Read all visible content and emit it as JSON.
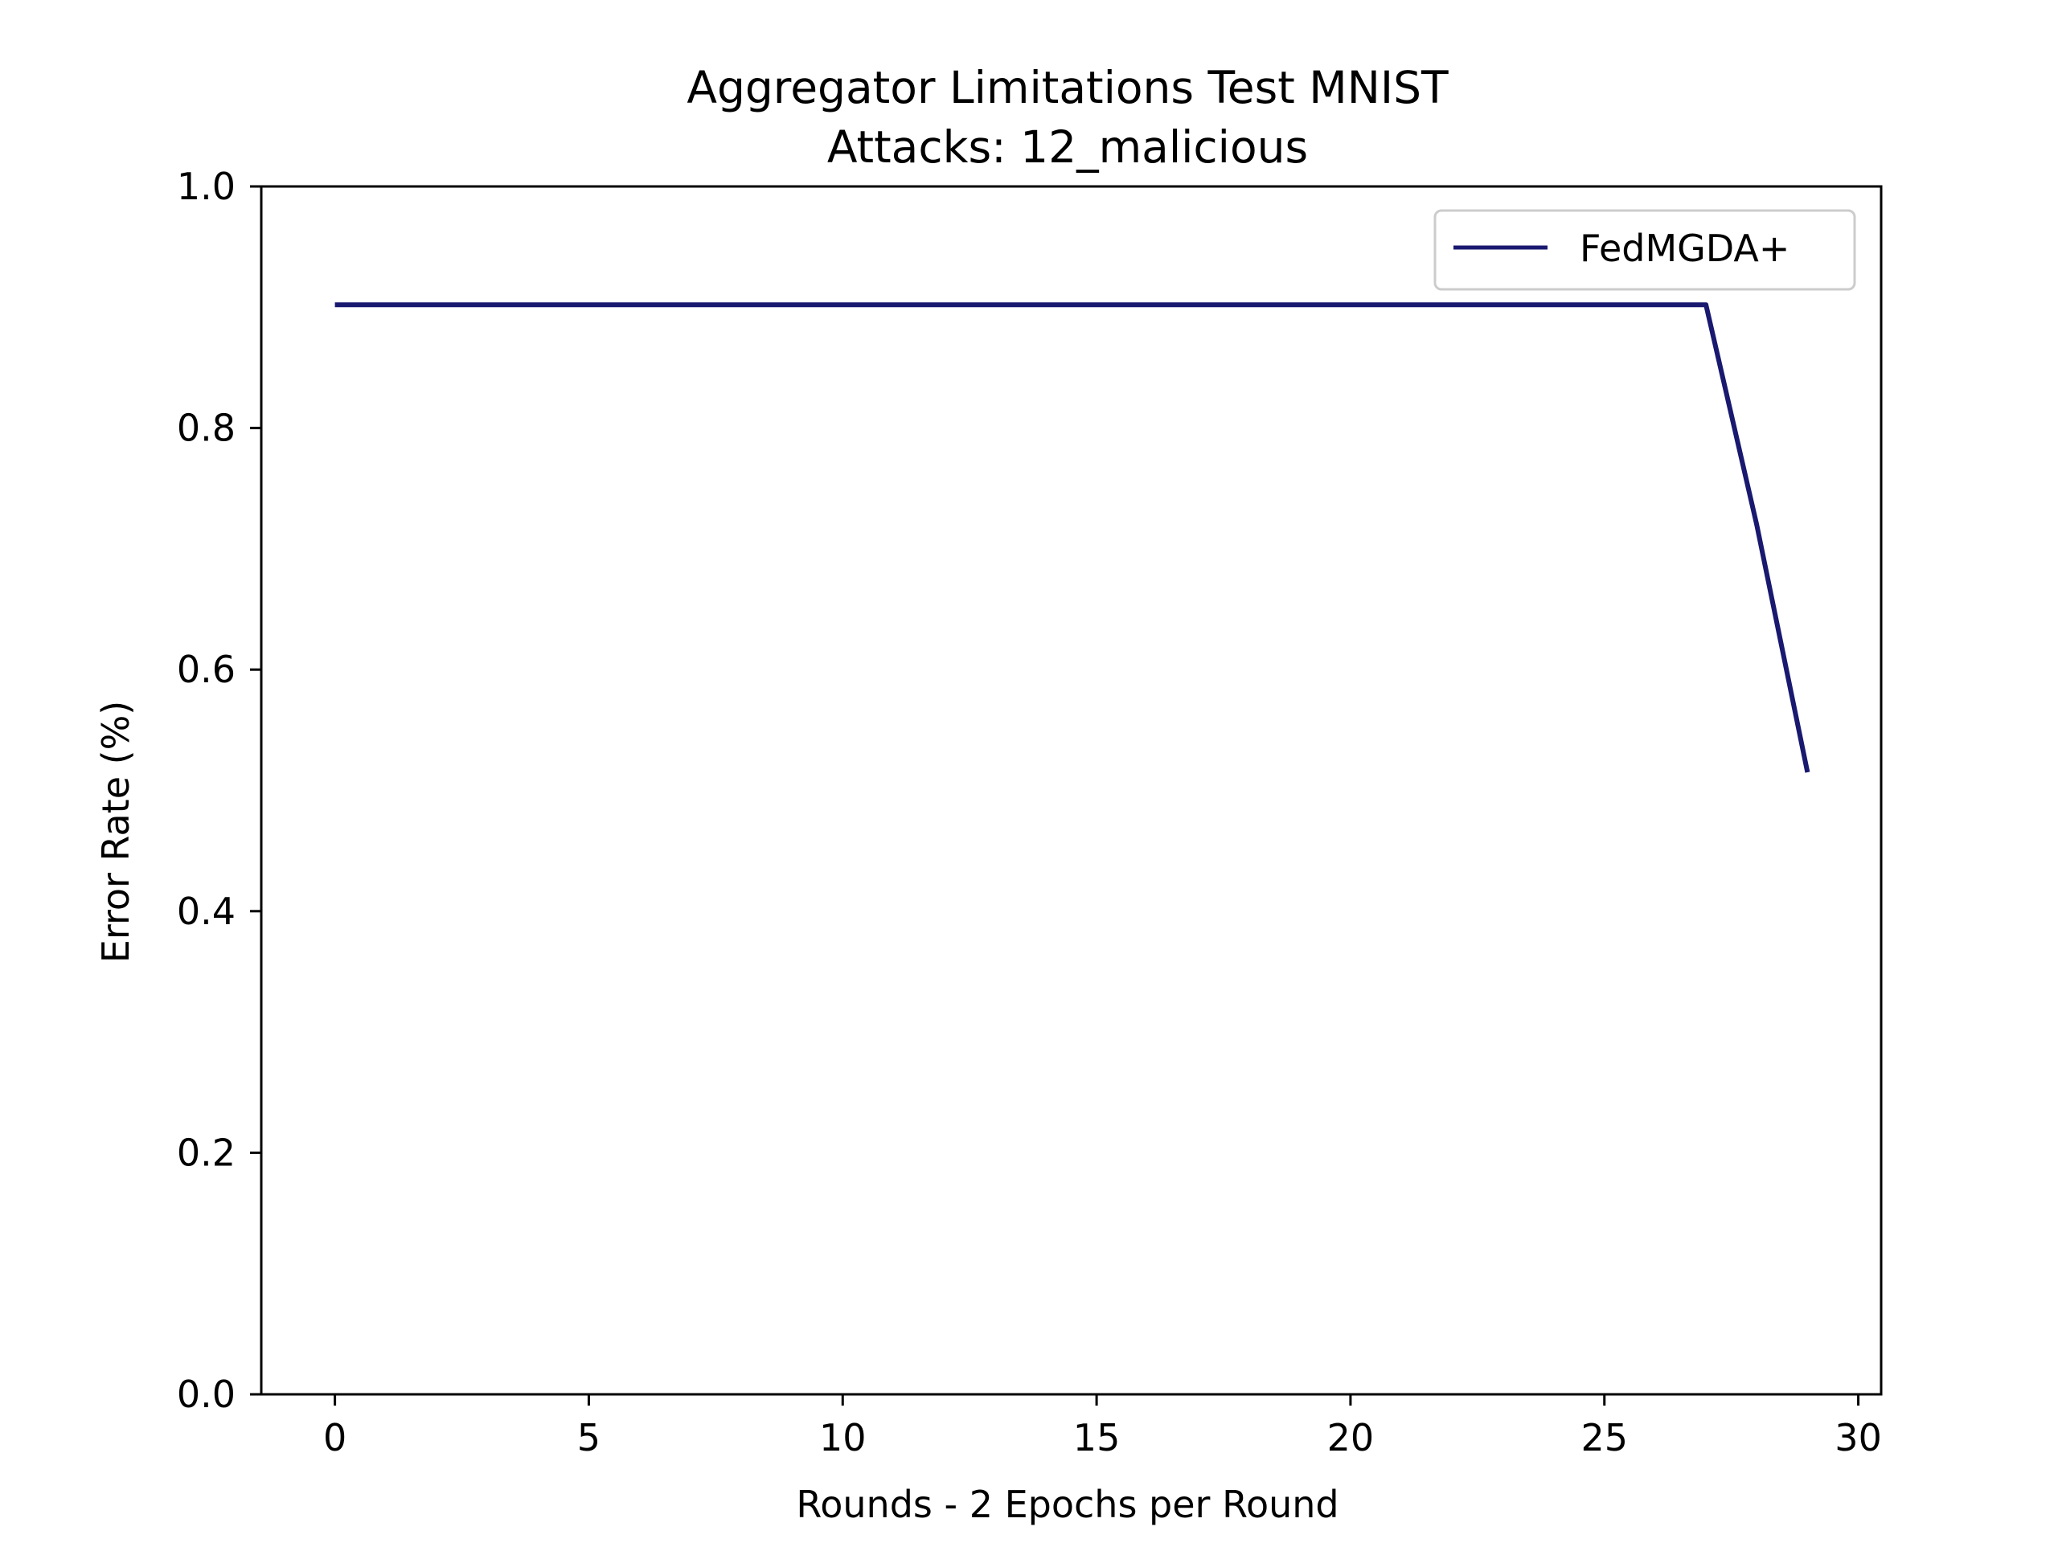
{
  "chart_data": {
    "type": "line",
    "title": "Aggregator Limitations Test MNIST",
    "subtitle": "Attacks: 12_malicious",
    "xlabel": "Rounds - 2 Epochs per Round",
    "ylabel": "Error Rate (%)",
    "xlim": [
      -1.45,
      30.45
    ],
    "ylim": [
      0.0,
      1.0
    ],
    "xticks": [
      0,
      5,
      10,
      15,
      20,
      25,
      30
    ],
    "xtick_labels": [
      "0",
      "5",
      "10",
      "15",
      "20",
      "25",
      "30"
    ],
    "yticks": [
      0.0,
      0.2,
      0.4,
      0.6,
      0.8,
      1.0
    ],
    "ytick_labels": [
      "0.0",
      "0.2",
      "0.4",
      "0.6",
      "0.8",
      "1.0"
    ],
    "grid": false,
    "legend_position": "upper right",
    "series": [
      {
        "name": "FedMGDA+",
        "color": "#191970",
        "x": [
          0,
          1,
          2,
          3,
          4,
          5,
          6,
          7,
          8,
          9,
          10,
          11,
          12,
          13,
          14,
          15,
          16,
          17,
          18,
          19,
          20,
          21,
          22,
          23,
          24,
          25,
          26,
          27,
          28,
          29
        ],
        "y": [
          0.902,
          0.902,
          0.902,
          0.902,
          0.902,
          0.902,
          0.902,
          0.902,
          0.902,
          0.902,
          0.902,
          0.902,
          0.902,
          0.902,
          0.902,
          0.902,
          0.902,
          0.902,
          0.902,
          0.902,
          0.902,
          0.902,
          0.902,
          0.902,
          0.902,
          0.902,
          0.902,
          0.902,
          0.72,
          0.515
        ]
      }
    ]
  }
}
